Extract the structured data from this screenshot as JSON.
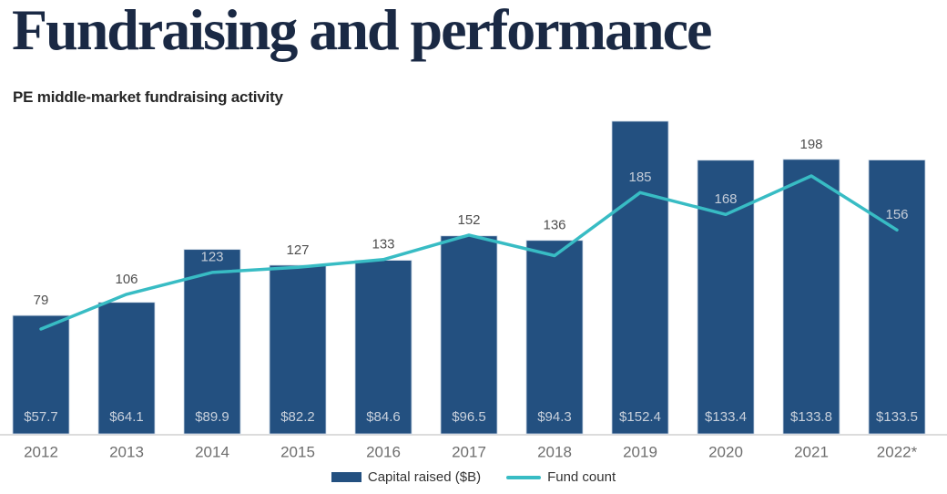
{
  "header": {
    "title": "Fundraising and performance",
    "subtitle": "PE middle-market fundraising activity"
  },
  "legend": {
    "bar_label": "Capital raised ($B)",
    "line_label": "Fund count"
  },
  "colors": {
    "title-color": "#1a2944",
    "bar-color": "#235080",
    "bar-edge-color": "#cdd9e6",
    "line-color": "#38bcc4",
    "bar-value-text": "#c9d1dc",
    "count-label-dark": "#4e4e4e",
    "count-label-light": "#c5cdd8",
    "x-label-color": "#6e6e6e",
    "axis-line-color": "#dcdcdc"
  },
  "chart_data": {
    "type": "bar+line combo",
    "title": "PE middle-market fundraising activity",
    "categories": [
      "2012",
      "2013",
      "2014",
      "2015",
      "2016",
      "2017",
      "2018",
      "2019",
      "2020",
      "2021",
      "2022*"
    ],
    "series": [
      {
        "name": "Capital raised ($B)",
        "type": "bar",
        "values": [
          57.7,
          64.1,
          89.9,
          82.2,
          84.6,
          96.5,
          94.3,
          152.4,
          133.4,
          133.8,
          133.5
        ],
        "value_labels": [
          "$57.7",
          "$64.1",
          "$89.9",
          "$82.2",
          "$84.6",
          "$96.5",
          "$94.3",
          "$152.4",
          "$133.4",
          "$133.8",
          "$133.5"
        ],
        "value_label_position": "inside-bottom"
      },
      {
        "name": "Fund count",
        "type": "line",
        "values": [
          79,
          106,
          123,
          127,
          133,
          152,
          136,
          185,
          168,
          198,
          156
        ],
        "label_inside_bar": [
          false,
          false,
          true,
          false,
          false,
          false,
          false,
          true,
          true,
          false,
          true
        ]
      }
    ],
    "axes": {
      "x": {
        "labels_visible": true
      },
      "y_bar": {
        "visible": false,
        "approx_range": [
          0,
          160
        ]
      },
      "y_line": {
        "visible": false,
        "approx_range": [
          0,
          210
        ]
      }
    },
    "grid": false,
    "legend_position": "bottom-center"
  }
}
